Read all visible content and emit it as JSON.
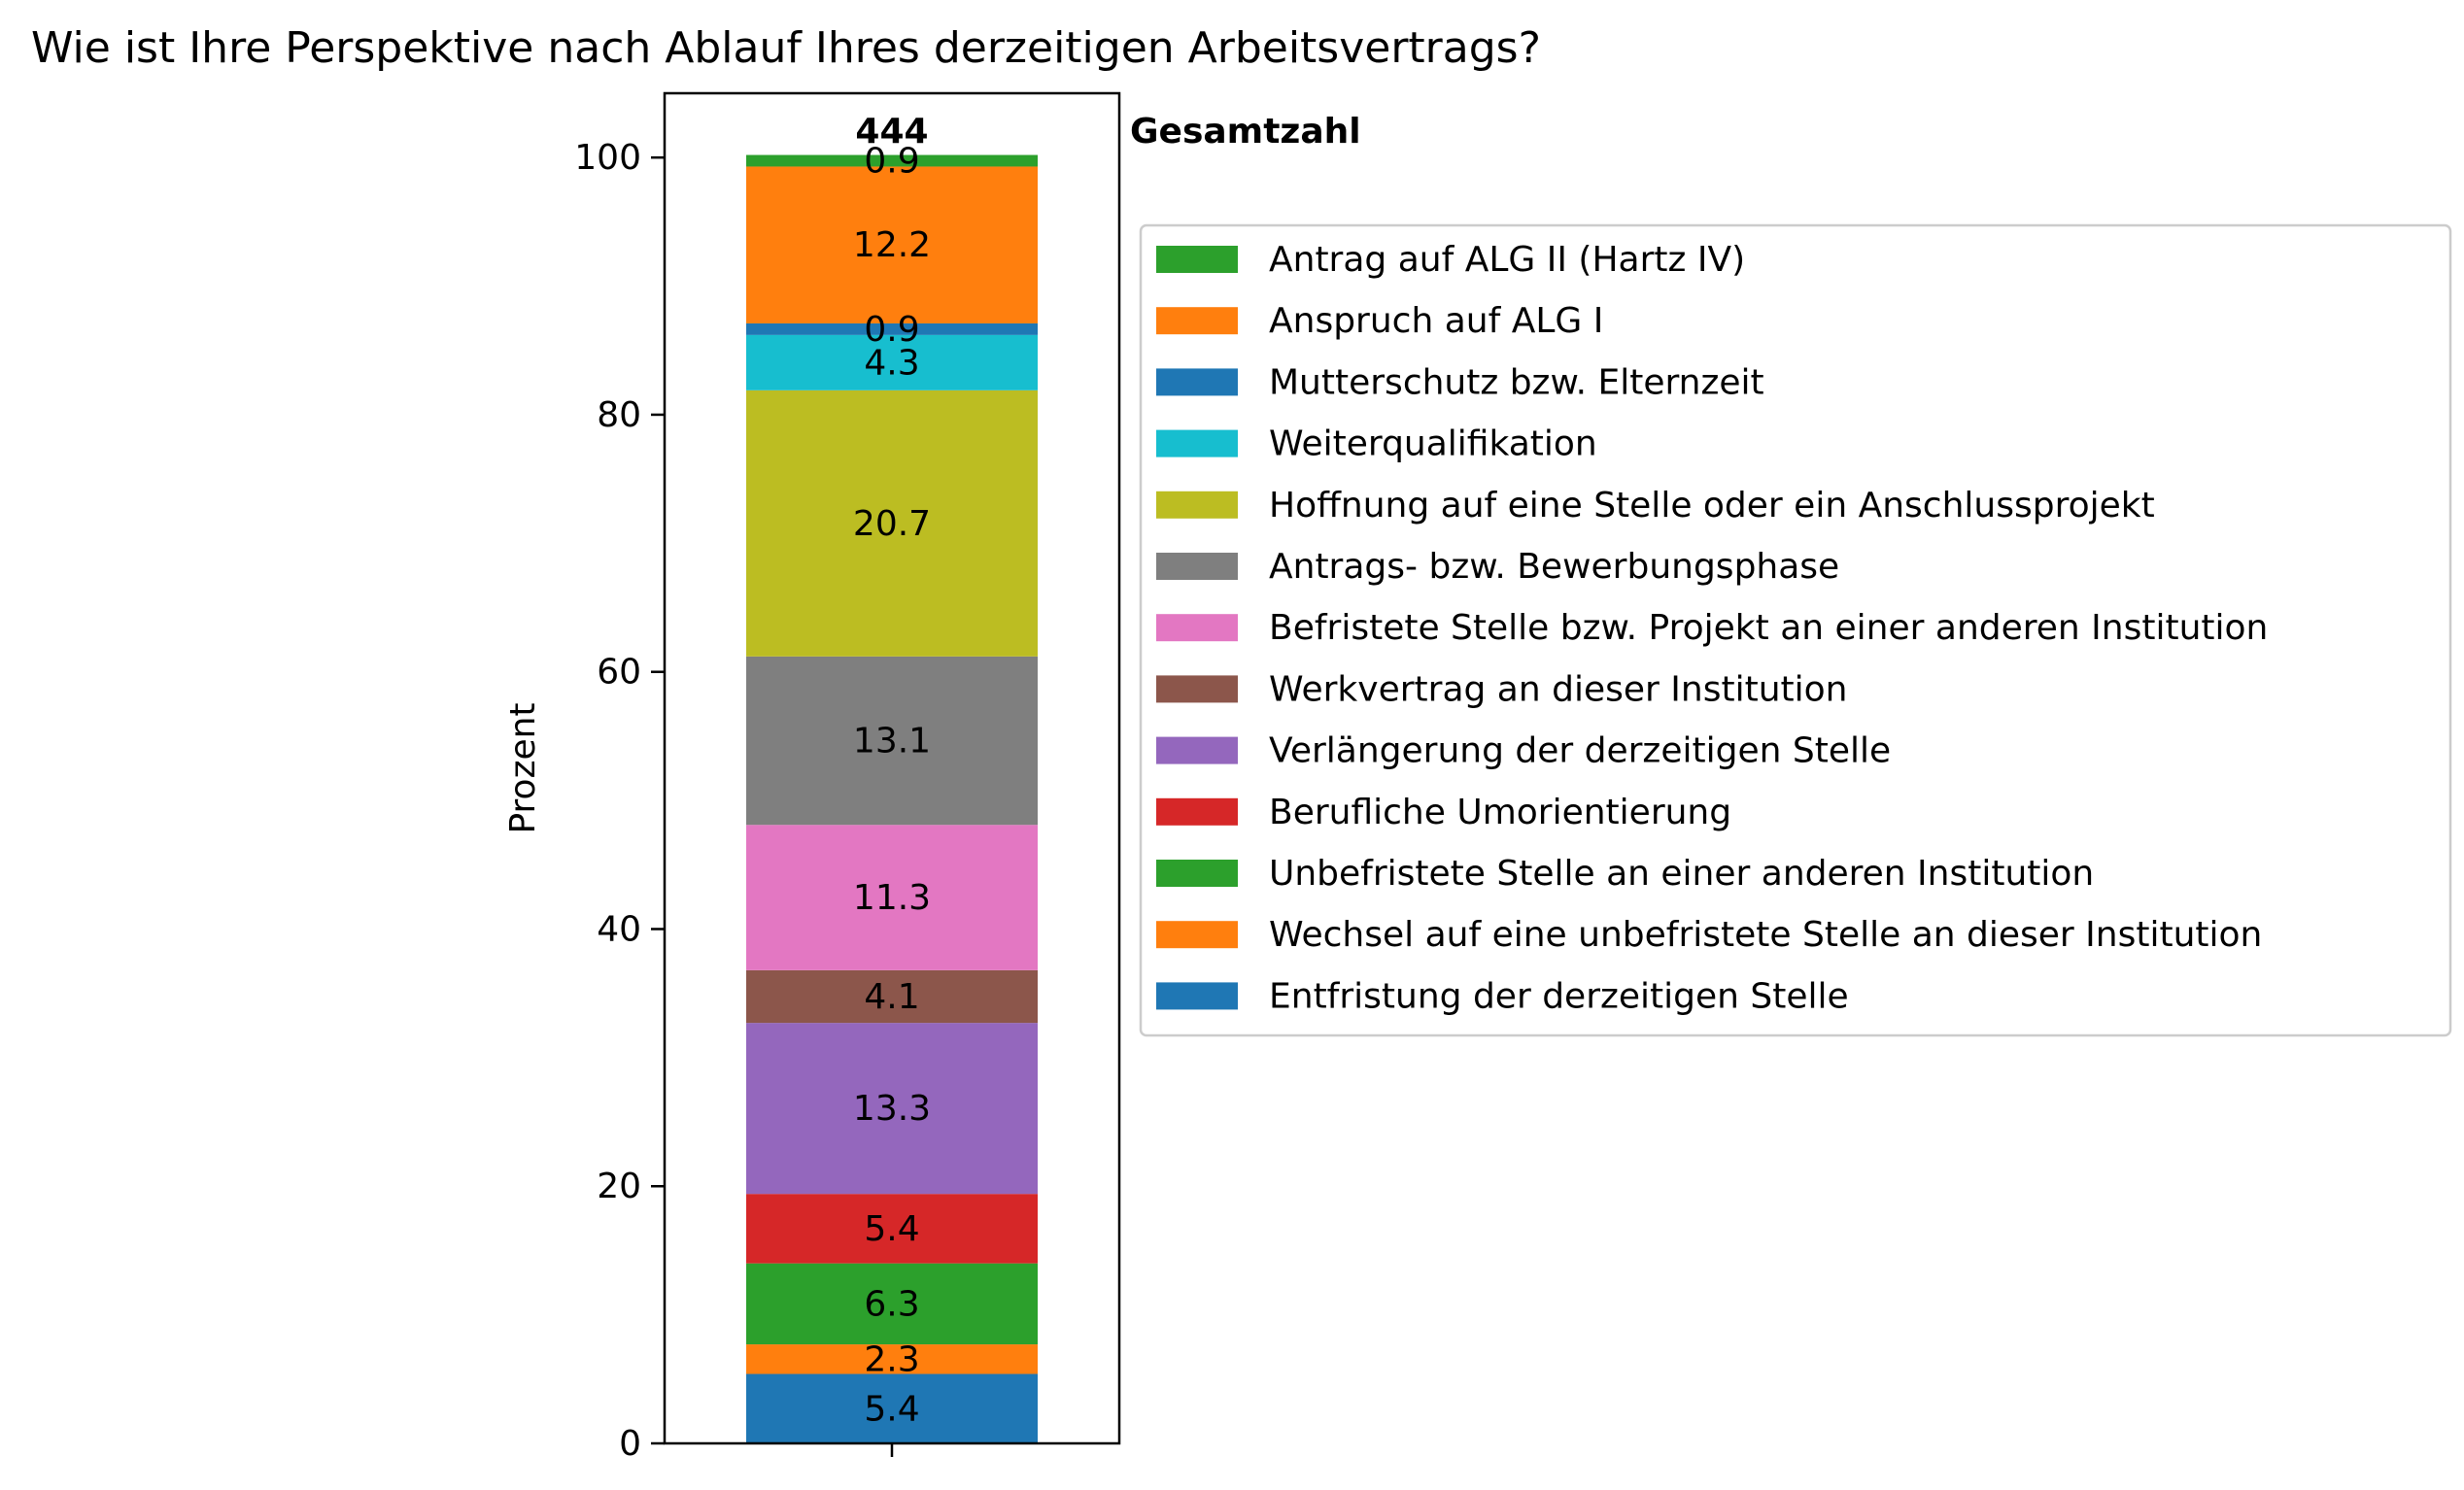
{
  "chart_data": {
    "type": "bar",
    "stacked": true,
    "title": "Wie ist Ihre Perspektive nach Ablauf Ihres derzeitigen Arbeitsvertrags?",
    "ylabel": "Prozent",
    "ylim": [
      0,
      105
    ],
    "yticks": [
      "0",
      "20",
      "40",
      "60",
      "80",
      "100"
    ],
    "total_value": "444",
    "total_label": "Gesamtzahl",
    "legend_position": "right",
    "series": [
      {
        "name": "Entfristung der derzeitigen Stelle",
        "value": 5.4,
        "label": "5.4",
        "color": "#1f77b4"
      },
      {
        "name": "Wechsel auf eine unbefristete Stelle an dieser Institution",
        "value": 2.3,
        "label": "2.3",
        "color": "#ff7f0e"
      },
      {
        "name": "Unbefristete Stelle an einer anderen Institution",
        "value": 6.3,
        "label": "6.3",
        "color": "#2ca02c"
      },
      {
        "name": "Berufliche Umorientierung",
        "value": 5.4,
        "label": "5.4",
        "color": "#d62728"
      },
      {
        "name": "Verlängerung der derzeitigen Stelle",
        "value": 13.3,
        "label": "13.3",
        "color": "#9467bd"
      },
      {
        "name": "Werkvertrag an dieser Institution",
        "value": 4.1,
        "label": "4.1",
        "color": "#8c564b"
      },
      {
        "name": "Befristete Stelle bzw. Projekt an einer anderen Institution",
        "value": 11.3,
        "label": "11.3",
        "color": "#e377c2"
      },
      {
        "name": "Antrags- bzw. Bewerbungsphase",
        "value": 13.1,
        "label": "13.1",
        "color": "#7f7f7f"
      },
      {
        "name": "Hoffnung auf eine Stelle oder ein Anschlussprojekt",
        "value": 20.7,
        "label": "20.7",
        "color": "#bcbd22"
      },
      {
        "name": "Weiterqualifikation",
        "value": 4.3,
        "label": "4.3",
        "color": "#17becf"
      },
      {
        "name": "Mutterschutz bzw. Elternzeit",
        "value": 0.9,
        "label": "0.9",
        "color": "#1f77b4"
      },
      {
        "name": "Anspruch auf ALG I",
        "value": 12.2,
        "label": "12.2",
        "color": "#ff7f0e"
      },
      {
        "name": "Antrag auf ALG II (Hartz IV)",
        "value": 0.9,
        "label": "0.9",
        "color": "#2ca02c"
      }
    ]
  }
}
